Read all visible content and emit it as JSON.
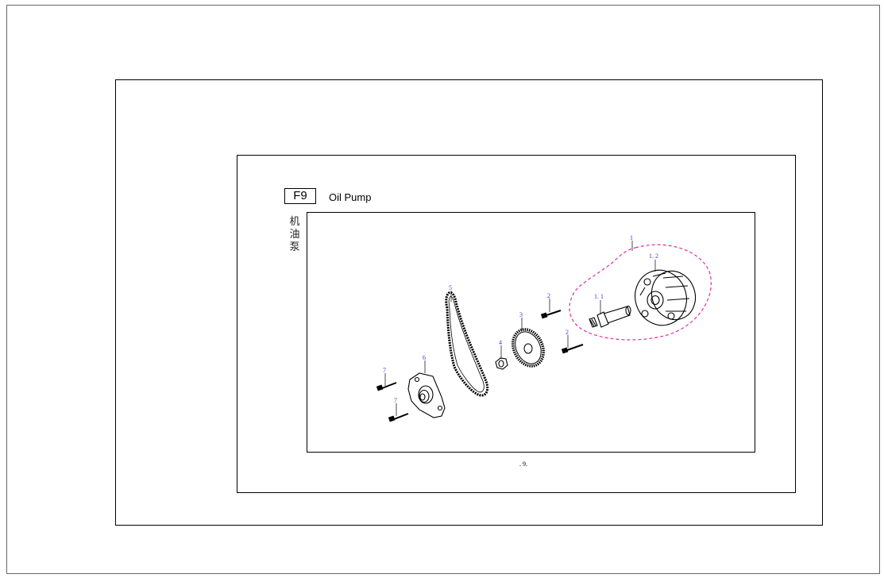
{
  "header": {
    "code": "F9",
    "title": "Oil Pump",
    "title_zh": [
      "机",
      "油",
      "泵"
    ]
  },
  "page_number": ". 9.",
  "callouts": {
    "assembly": "1",
    "cover": "1. 2",
    "shaft": "1. 1",
    "bolt_upper": "2",
    "bolt_lower": "2",
    "sprocket": "3",
    "nut": "4",
    "chain": "5",
    "plate": "6",
    "screw_upper": "7",
    "screw_lower": "7"
  },
  "colors": {
    "callout": "#3a3ad6",
    "assembly_outline": "#e0309a",
    "line": "#000000"
  }
}
